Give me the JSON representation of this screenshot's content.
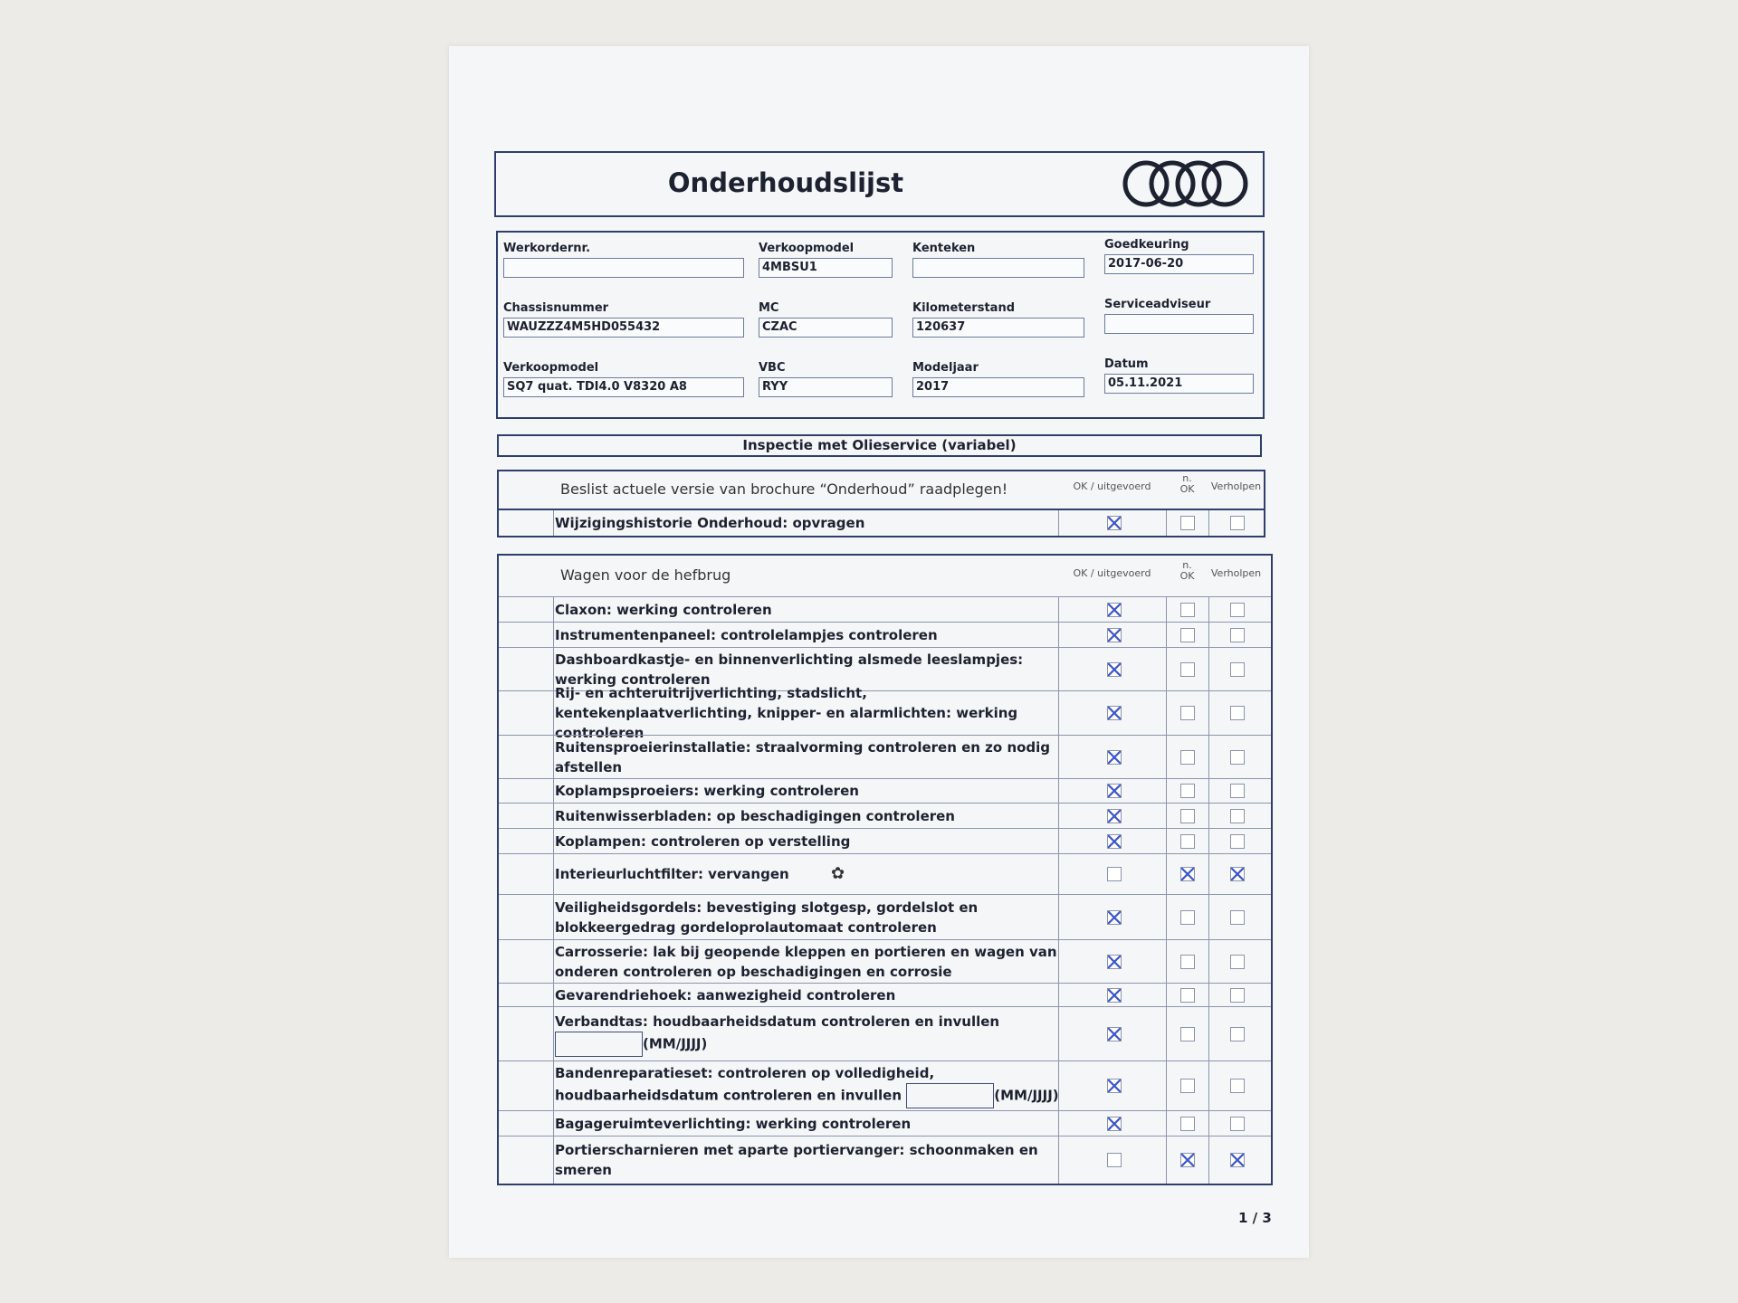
{
  "title": "Onderhoudslijst",
  "logo": "Audi rings",
  "fields": [
    {
      "label": "Werkordernr.",
      "value": ""
    },
    {
      "label": "Verkoopmodel",
      "value": "4MBSU1"
    },
    {
      "label": "Kenteken",
      "value": ""
    },
    {
      "label": "Goedkeuring",
      "value": "2017-06-20"
    },
    {
      "label": "Chassisnummer",
      "value": "WAUZZZ4M5HD055432"
    },
    {
      "label": "MC",
      "value": "CZAC"
    },
    {
      "label": "Kilometerstand",
      "value": "120637"
    },
    {
      "label": "Serviceadviseur",
      "value": ""
    },
    {
      "label": "Verkoopmodel",
      "value": "SQ7 quat. TDI4.0 V8320 A8"
    },
    {
      "label": "VBC",
      "value": "RYY"
    },
    {
      "label": "Modeljaar",
      "value": "2017"
    },
    {
      "label": "Datum",
      "value": "05.11.2021"
    }
  ],
  "section_title": "Inspectie met Olieservice (variabel)",
  "columns": {
    "ok": "OK / uitgevoerd",
    "nok_n": "n.",
    "nok": "OK",
    "fixed": "Verholpen"
  },
  "beslist": {
    "heading": "Beslist actuele versie van brochure “Onderhoud” raadplegen!",
    "item": {
      "text": "Wijzigingshistorie Onderhoud: opvragen",
      "ok": true,
      "nok": false,
      "fixed": false
    }
  },
  "wagen": {
    "heading": "Wagen voor de hefbrug",
    "date_suffix": "(MM/JJJJ)",
    "items": [
      {
        "text": "Claxon: werking controleren",
        "ok": true,
        "nok": false,
        "fixed": false
      },
      {
        "text": "Instrumentenpaneel: controlelampjes controleren",
        "ok": true,
        "nok": false,
        "fixed": false
      },
      {
        "text": "Dashboardkastje- en binnenverlichting alsmede leeslampjes: werking controleren",
        "ok": true,
        "nok": false,
        "fixed": false
      },
      {
        "text": "Rij- en achteruitrijverlichting, stadslicht, kentekenplaatverlichting, knipper- en alarmlichten: werking controleren",
        "ok": true,
        "nok": false,
        "fixed": false
      },
      {
        "text": "Ruitensproeierinstallatie: straalvorming controleren en zo nodig afstellen",
        "ok": true,
        "nok": false,
        "fixed": false
      },
      {
        "text": "Koplampsproeiers: werking controleren",
        "ok": true,
        "nok": false,
        "fixed": false
      },
      {
        "text": "Ruitenwisserbladen: op beschadigingen controleren",
        "ok": true,
        "nok": false,
        "fixed": false
      },
      {
        "text": "Koplampen: controleren op verstelling",
        "ok": true,
        "nok": false,
        "fixed": false
      },
      {
        "text": "Interieurluchtfilter: vervangen",
        "ok": false,
        "nok": true,
        "fixed": true,
        "icon": "flower-icon"
      },
      {
        "text": "Veiligheidsgordels: bevestiging slotgesp, gordelslot en blokkeergedrag gordeloprolautomaat controleren",
        "ok": true,
        "nok": false,
        "fixed": false
      },
      {
        "text": "Carrosserie: lak bij geopende kleppen en portieren en wagen van onderen controleren op beschadigingen en corrosie",
        "ok": true,
        "nok": false,
        "fixed": false
      },
      {
        "text": "Gevarendriehoek: aanwezigheid controleren",
        "ok": true,
        "nok": false,
        "fixed": false
      },
      {
        "text": "Verbandtas: houdbaarheidsdatum controleren en invullen",
        "ok": true,
        "nok": false,
        "fixed": false,
        "date": "below"
      },
      {
        "text": "Bandenreparatieset: controleren op volledigheid, houdbaarheidsdatum controleren en invullen",
        "ok": true,
        "nok": false,
        "fixed": false,
        "date": "inline"
      },
      {
        "text": "Bagageruimteverlichting: werking controleren",
        "ok": true,
        "nok": false,
        "fixed": false
      },
      {
        "text": "Portierscharnieren met aparte portiervanger: schoonmaken en smeren",
        "ok": false,
        "nok": true,
        "fixed": true
      }
    ]
  },
  "page_number": "1 / 3",
  "colors": {
    "ink": "#2f3f6b",
    "pen": "#3d57c8"
  }
}
